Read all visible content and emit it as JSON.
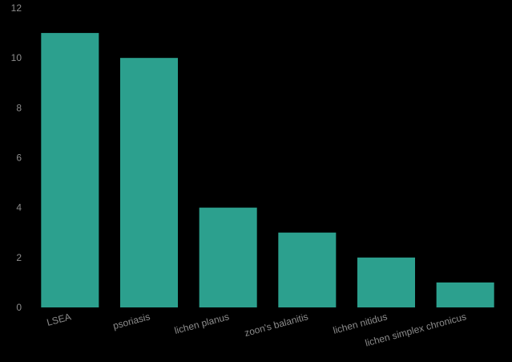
{
  "chart_data": {
    "type": "bar",
    "categories": [
      "LSEA",
      "psoriasis",
      "lichen planus",
      "zoon's balanitis",
      "lichen nitidus",
      "lichen simplex chronicus"
    ],
    "values": [
      11,
      10,
      4,
      3,
      2,
      1
    ],
    "title": "",
    "xlabel": "",
    "ylabel": "",
    "ylim": [
      0,
      12
    ],
    "yticks": [
      0,
      2,
      4,
      6,
      8,
      10,
      12
    ],
    "grid": false,
    "legend": "none",
    "bar_color": "#2ca08e",
    "background_color": "#000000",
    "label_color": "#8c8c8c"
  }
}
